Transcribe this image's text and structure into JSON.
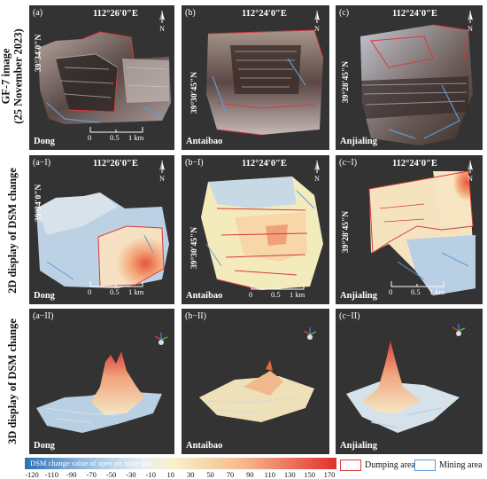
{
  "row_labels": {
    "r1_line1": "GF-7 image",
    "r1_line2": "(25 November 2023)",
    "r2": "2D display of DSM change",
    "r3": "3D display of DSM change"
  },
  "panels": {
    "a": {
      "label": "(a)",
      "lon": "112°26′0″E",
      "lat": "39°34′0″N",
      "site": "Dong"
    },
    "b": {
      "label": "(b)",
      "lon": "112°24′0″E",
      "lat": "39°30′45″N",
      "site": "Antaibao"
    },
    "c": {
      "label": "(c)",
      "lon": "112°24′0″E",
      "lat": "39°28′45″N",
      "site": "Anjialing"
    },
    "aI": {
      "label": "(a−I)",
      "lon": "112°26′0″E",
      "lat": "39°34′0″N",
      "site": "Dong"
    },
    "bI": {
      "label": "(b−I)",
      "lon": "112°24′0″E",
      "lat": "39°30′45″N",
      "site": "Antaibao"
    },
    "cI": {
      "label": "(c−I)",
      "lon": "112°24′0″E",
      "lat": "39°28′45″N",
      "site": "Anjialing"
    },
    "aII": {
      "label": "(a−II)",
      "site": "Dong"
    },
    "bII": {
      "label": "(b−II)",
      "site": "Antaibao"
    },
    "cII": {
      "label": "(c−II)",
      "site": "Anjialing"
    }
  },
  "north_label": "N",
  "scale": {
    "t0": "0",
    "t1": "0.5",
    "t2": "1 km"
  },
  "legend": {
    "title": "DSM change value of open pit mine (m)",
    "ticks": [
      "-120",
      "-110",
      "-90",
      "-70",
      "-50",
      "-30",
      "-10",
      "10",
      "30",
      "50",
      "70",
      "90",
      "110",
      "130",
      "150",
      "170"
    ],
    "dumping": "Dumping area",
    "mining": "Mining area",
    "dumping_color": "#e0393e",
    "mining_color": "#5b9bd5"
  }
}
